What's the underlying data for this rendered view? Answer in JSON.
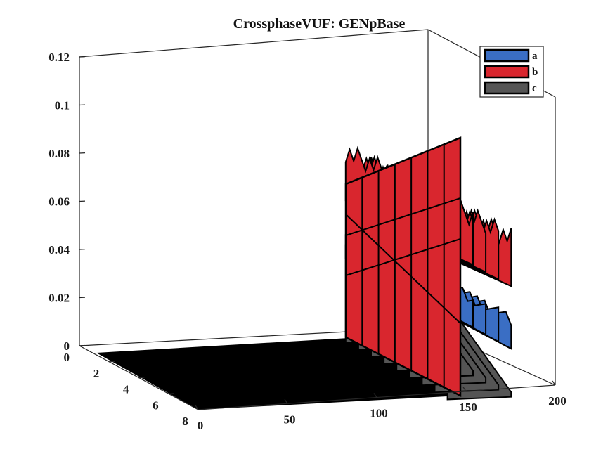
{
  "chart_data": {
    "type": "area",
    "title": "CrossphaseVUF: GENpBase",
    "xlabel": "",
    "ylabel": "",
    "zlabel": "",
    "x_ticks": [
      "0",
      "50",
      "100",
      "150",
      "200"
    ],
    "y_ticks": [
      "0",
      "2",
      "4",
      "6",
      "8"
    ],
    "z_ticks": [
      "0",
      "0.02",
      "0.04",
      "0.06",
      "0.08",
      "0.1",
      "0.12"
    ],
    "xlim": [
      0,
      200
    ],
    "ylim": [
      0,
      8
    ],
    "zlim": [
      0,
      0.12
    ],
    "legend_position": "top-right",
    "colors": {
      "a": "#3a6ec4",
      "b": "#d9262e",
      "c": "#555555",
      "edge": "#000000",
      "floor": "#000000"
    },
    "series": [
      {
        "name": "a",
        "level_start": 0.047,
        "level_end": 0.032,
        "x_start": 137,
        "x_end": 172
      },
      {
        "name": "b",
        "level_start": 0.079,
        "level_end": 0.066,
        "x_start": 0,
        "x_end": 172
      },
      {
        "name": "c",
        "level_start": 0.01,
        "level_end": 0.002,
        "x_start": 137,
        "x_end": 172
      }
    ]
  }
}
